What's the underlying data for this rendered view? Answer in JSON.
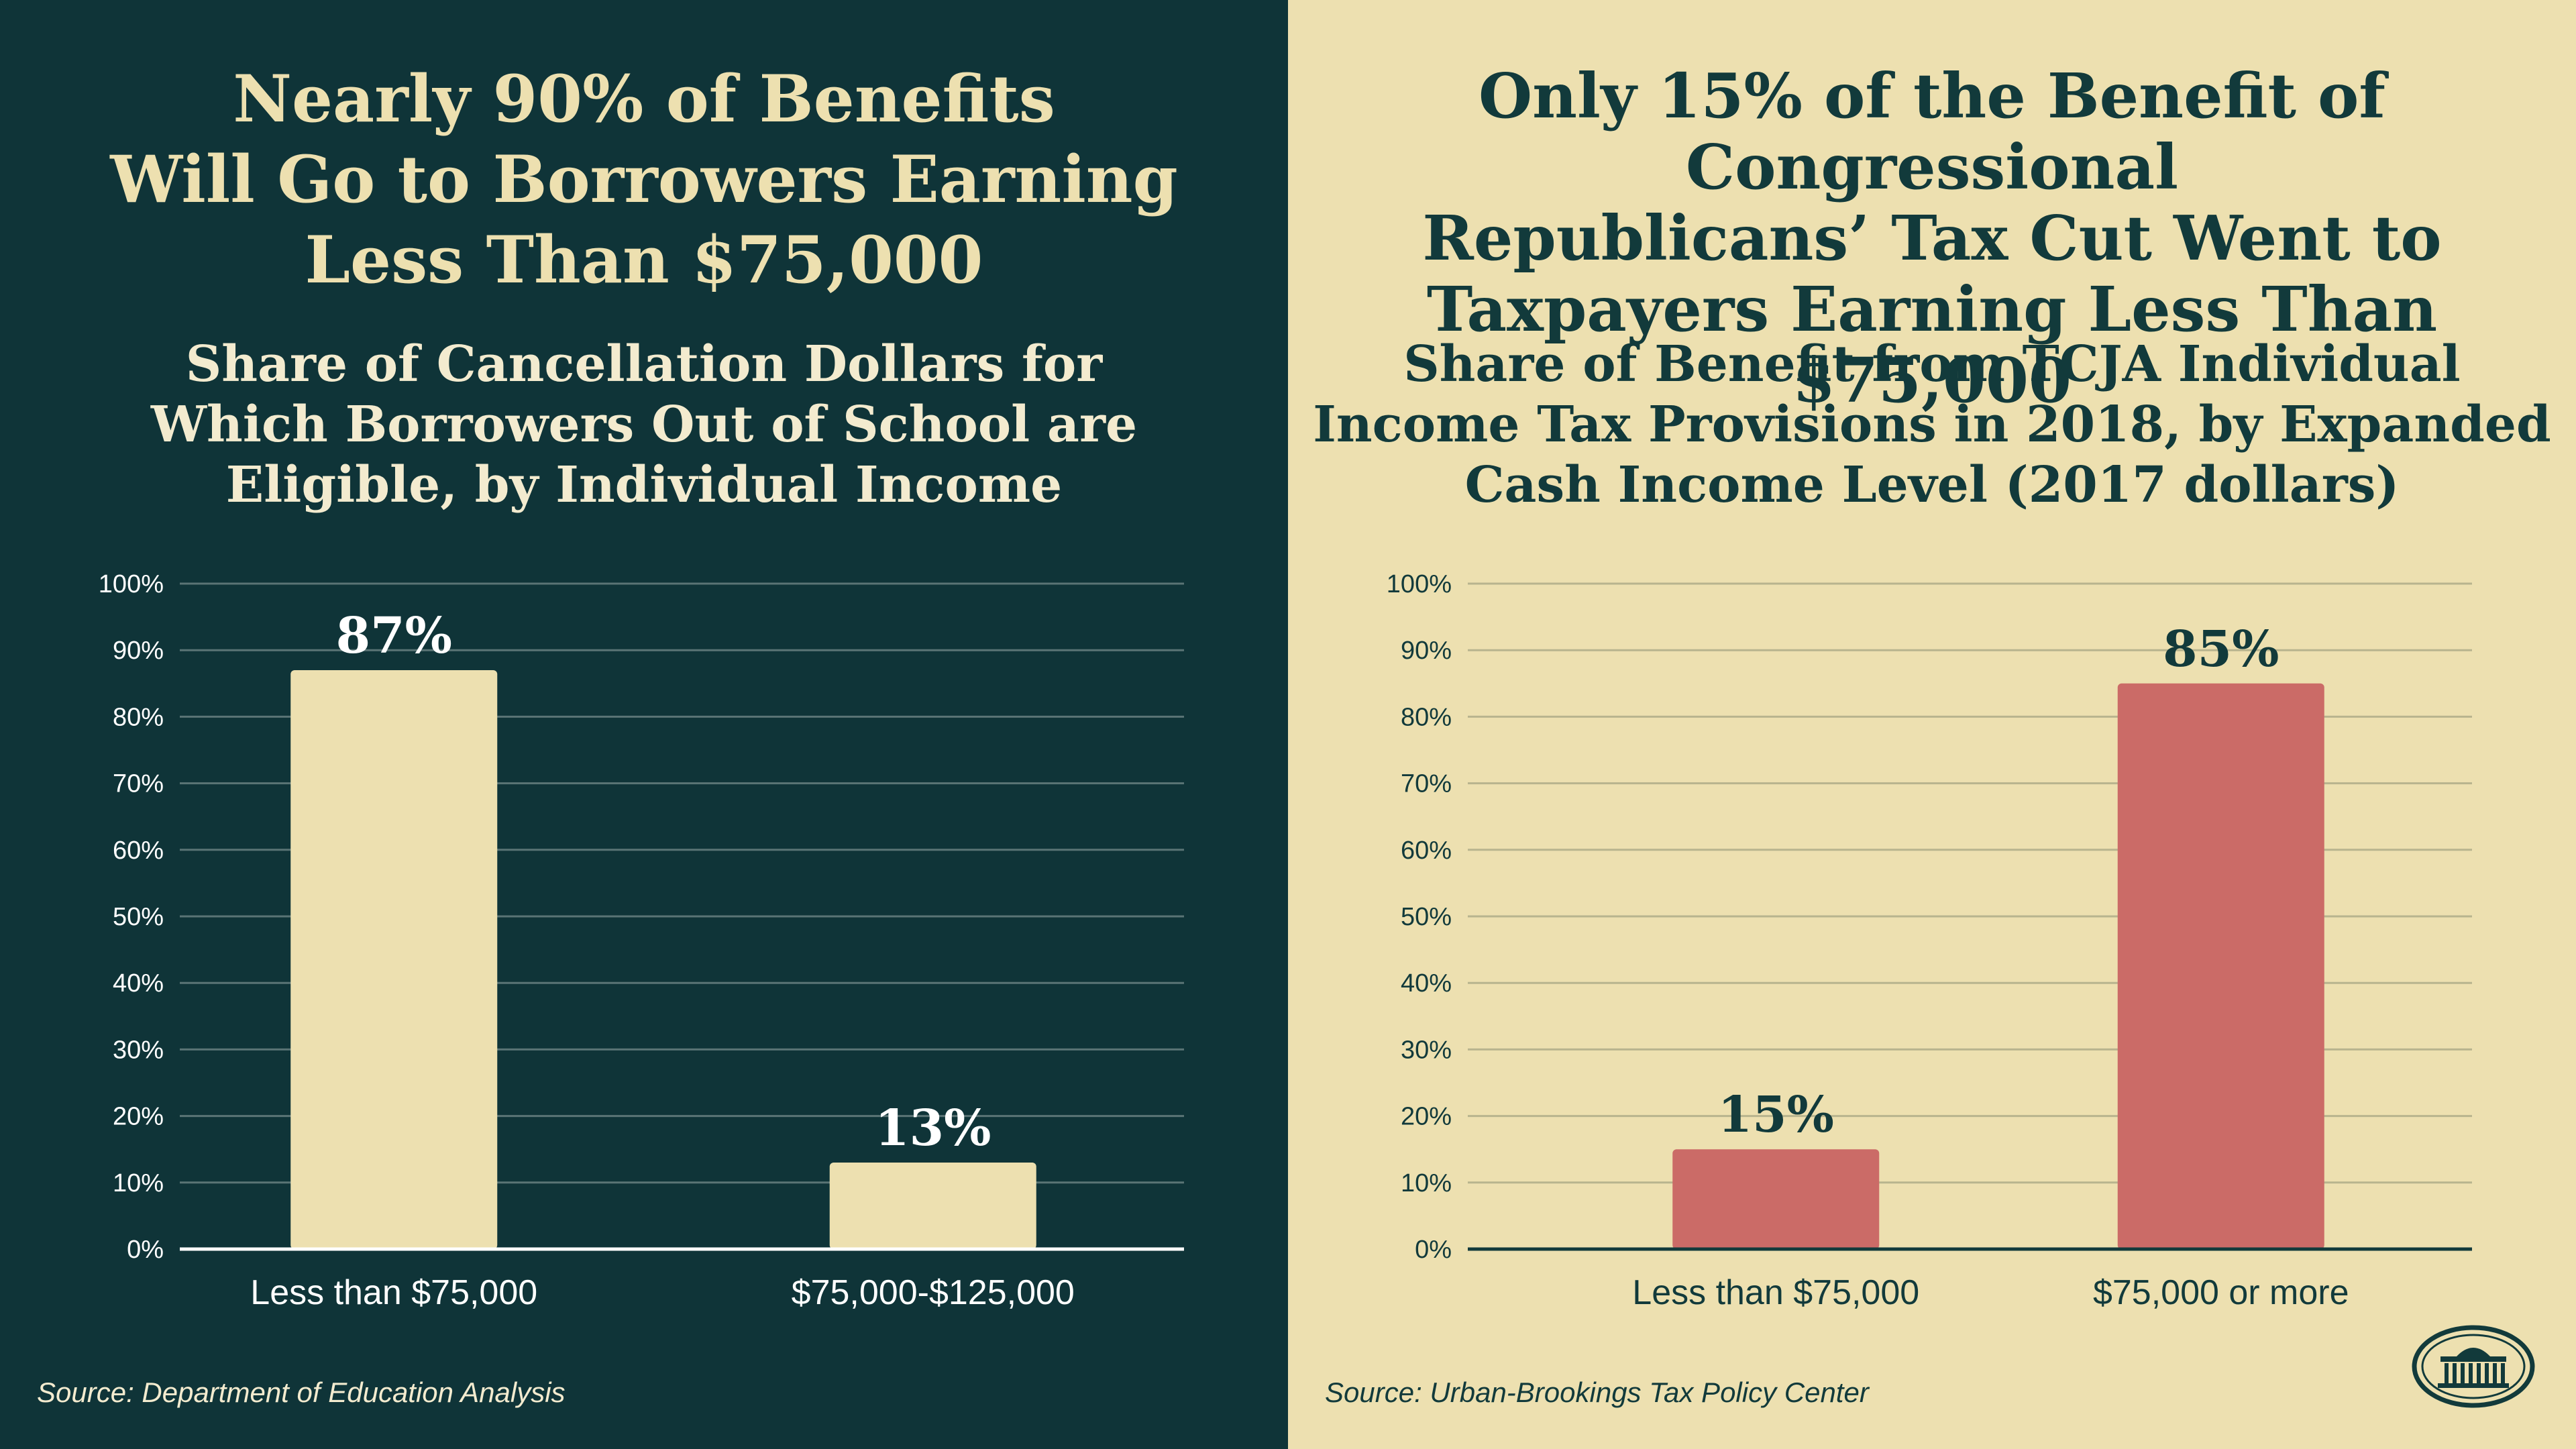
{
  "colors": {
    "left_background": "#0f3438",
    "right_background": "#ede0b0",
    "left_bar": "#ede0b0",
    "right_bar": "#cb6b67",
    "left_text": "#ede0b0",
    "right_text": "#123a3b"
  },
  "left_panel": {
    "title": "Nearly 90% of Benefits Will Go to Borrowers Earning Less Than $75,000",
    "title_lines": [
      "Nearly 90% of Benefits",
      "Will Go to Borrowers Earning",
      "Less Than $75,000"
    ],
    "subtitle_lines": [
      "Share of Cancellation Dollars for",
      "Which Borrowers Out of School are",
      "Eligible, by Individual Income"
    ],
    "source": "Source: Department of Education Analysis"
  },
  "right_panel": {
    "title": "Only 15% of the Benefit of Congressional Republicans’ Tax Cut Went to Taxpayers Earning Less Than $75,000",
    "title_lines": [
      "Only 15% of the Benefit of Congressional",
      "Republicans’ Tax Cut Went to",
      "Taxpayers Earning Less Than $75,000"
    ],
    "subtitle_lines": [
      "Share of Benefit from TCJA Individual",
      "Income Tax Provisions in 2018, by Expanded",
      "Cash Income Level (2017 dollars)"
    ],
    "source": "Source: Urban-Brookings Tax Policy Center",
    "logo_icon": "white-house-seal-icon"
  },
  "chart_data": [
    {
      "type": "bar",
      "title": "Share of Cancellation Dollars for Which Borrowers Out of School are Eligible, by Individual Income",
      "categories": [
        "Less than $75,000",
        "$75,000-$125,000"
      ],
      "values": [
        87,
        13
      ],
      "data_labels": [
        "87%",
        "13%"
      ],
      "ylim": [
        0,
        100
      ],
      "yticks": [
        0,
        10,
        20,
        30,
        40,
        50,
        60,
        70,
        80,
        90,
        100
      ],
      "ytick_labels": [
        "0%",
        "10%",
        "20%",
        "30%",
        "40%",
        "50%",
        "60%",
        "70%",
        "80%",
        "90%",
        "100%"
      ],
      "grid": true,
      "xlabel": "",
      "ylabel": ""
    },
    {
      "type": "bar",
      "title": "Share of Benefit from TCJA Individual Income Tax Provisions in 2018, by Expanded Cash Income Level (2017 dollars)",
      "categories": [
        "Less than $75,000",
        "$75,000 or more"
      ],
      "values": [
        15,
        85
      ],
      "data_labels": [
        "15%",
        "85%"
      ],
      "ylim": [
        0,
        100
      ],
      "yticks": [
        0,
        10,
        20,
        30,
        40,
        50,
        60,
        70,
        80,
        90,
        100
      ],
      "ytick_labels": [
        "0%",
        "10%",
        "20%",
        "30%",
        "40%",
        "50%",
        "60%",
        "70%",
        "80%",
        "90%",
        "100%"
      ],
      "grid": true,
      "xlabel": "",
      "ylabel": ""
    }
  ]
}
